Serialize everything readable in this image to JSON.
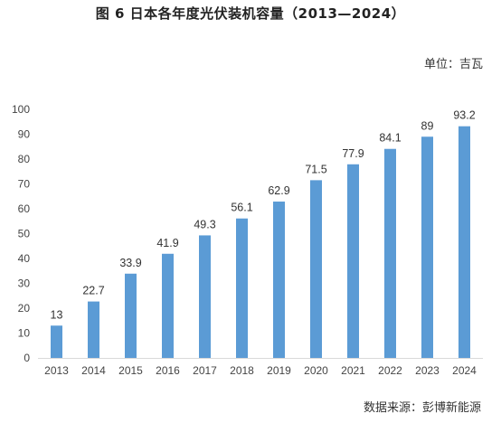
{
  "chart_data": {
    "type": "bar",
    "title": "图 6 日本各年度光伏装机容量（2013—2024）",
    "unit": "单位：吉瓦",
    "source": "数据来源：彭博新能源",
    "categories": [
      "2013",
      "2014",
      "2015",
      "2016",
      "2017",
      "2018",
      "2019",
      "2020",
      "2021",
      "2022",
      "2023",
      "2024"
    ],
    "values": [
      13,
      22.7,
      33.9,
      41.9,
      49.3,
      56.1,
      62.9,
      71.5,
      77.9,
      84.1,
      89,
      93.2
    ],
    "data_labels": [
      "13",
      "22.7",
      "33.9",
      "41.9",
      "49.3",
      "56.1",
      "62.9",
      "71.5",
      "77.9",
      "84.1",
      "89",
      "93.2"
    ],
    "ylim": [
      0,
      100
    ],
    "yticks": [
      0,
      10,
      20,
      30,
      40,
      50,
      60,
      70,
      80,
      90,
      100
    ],
    "grid": false,
    "legend": "none",
    "bar_color": "#5b9bd5",
    "axis_color": "#d9d9d9"
  }
}
